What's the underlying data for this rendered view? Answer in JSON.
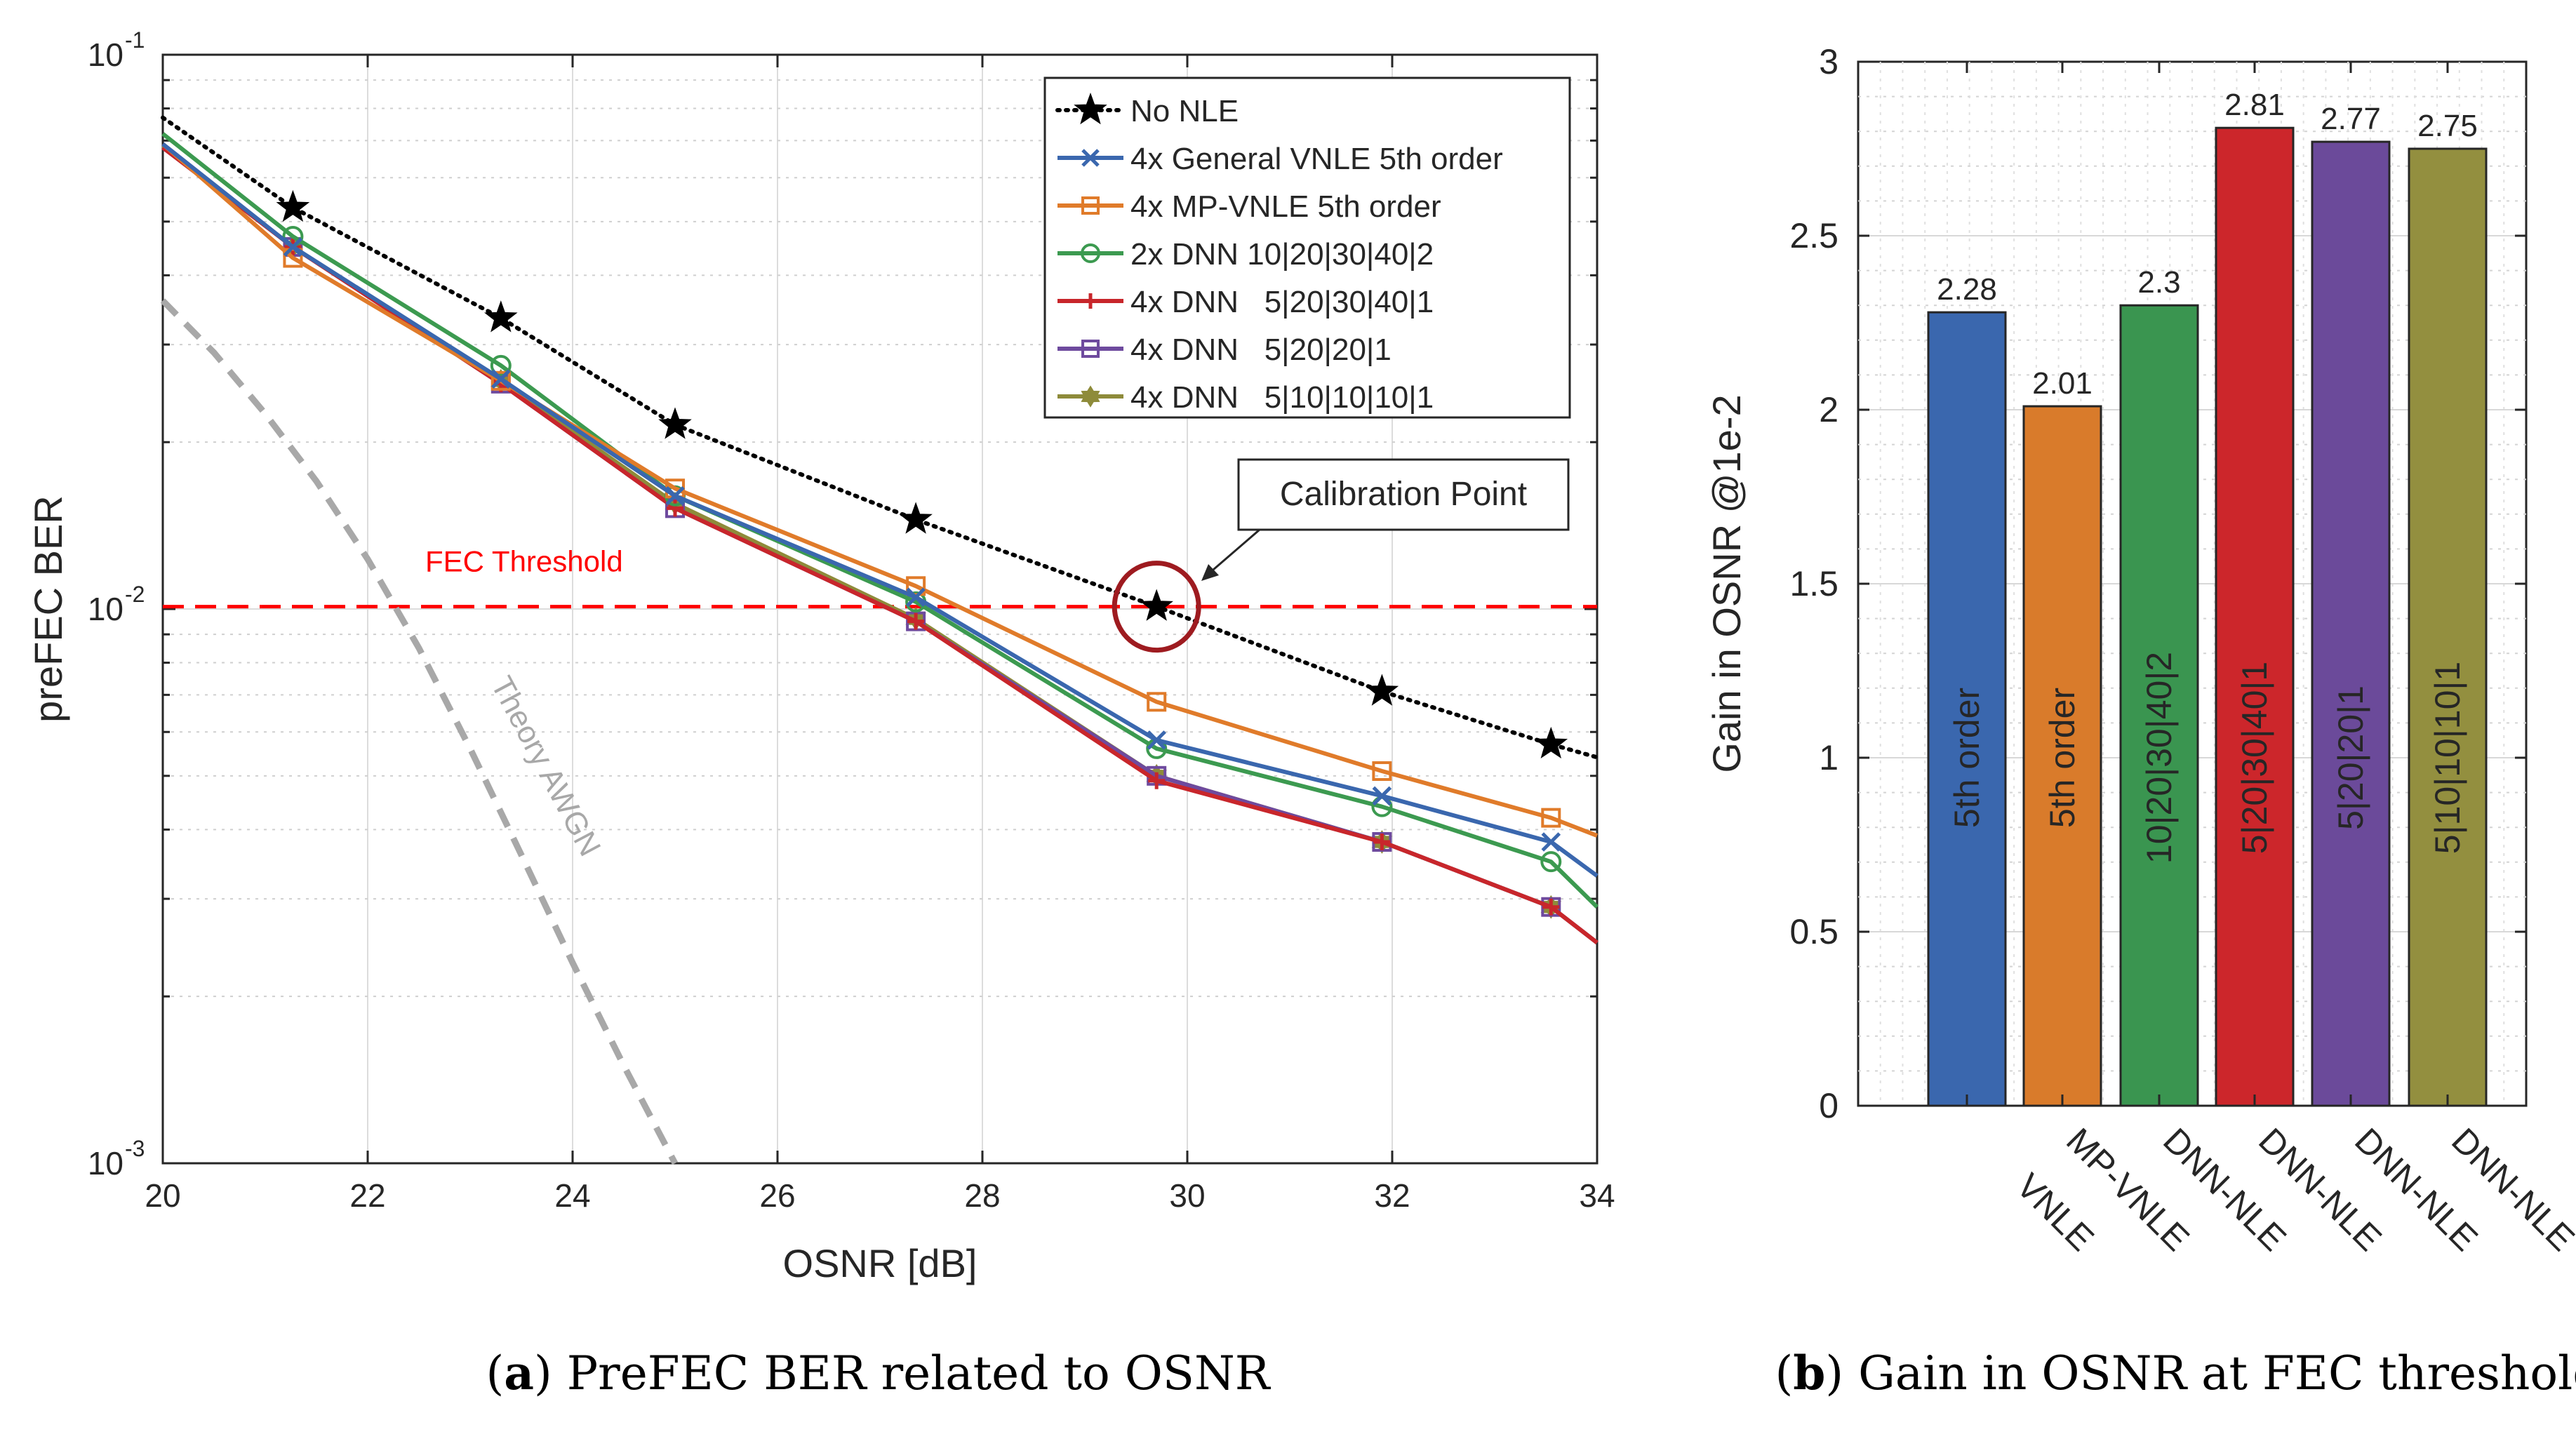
{
  "chart_data": [
    {
      "type": "line",
      "panel": "a",
      "caption_letter": "a",
      "caption_text": "PreFEC BER related to OSNR",
      "xlabel": "OSNR [dB]",
      "ylabel": "preFEC BER",
      "xlim": [
        20,
        34
      ],
      "ylim": [
        0.001,
        0.1
      ],
      "yscale": "log",
      "xticks": [
        20,
        22,
        24,
        26,
        28,
        30,
        32,
        34
      ],
      "yticks": [
        {
          "value": 0.1,
          "base": "10",
          "exp": "-1"
        },
        {
          "value": 0.01,
          "base": "10",
          "exp": "-2"
        },
        {
          "value": 0.001,
          "base": "10",
          "exp": "-3"
        }
      ],
      "grid": true,
      "legend_position": "top-right",
      "series": [
        {
          "name": "No NLE",
          "color": "#000000",
          "marker": "star",
          "style": "dotted",
          "x": [
            20,
            21.27,
            23.3,
            25.0,
            27.35,
            29.7,
            31.9,
            33.55,
            34
          ],
          "y": [
            0.077,
            0.053,
            0.0335,
            0.0215,
            0.0145,
            0.0101,
            0.0071,
            0.0057,
            0.0054
          ]
        },
        {
          "name": "4x General VNLE 5th order",
          "color": "#3A67AE",
          "marker": "x",
          "style": "solid",
          "x": [
            20,
            21.27,
            23.3,
            25.0,
            27.35,
            29.7,
            31.9,
            33.55,
            34
          ],
          "y": [
            0.069,
            0.045,
            0.026,
            0.016,
            0.0105,
            0.0058,
            0.0046,
            0.0038,
            0.0033
          ]
        },
        {
          "name": "4x MP-VNLE 5th order",
          "color": "#E07B2A",
          "marker": "square",
          "style": "solid",
          "x": [
            20,
            21.27,
            23.3,
            25.0,
            27.35,
            29.7,
            31.9,
            33.55,
            34
          ],
          "y": [
            0.069,
            0.043,
            0.0258,
            0.0165,
            0.011,
            0.0068,
            0.0051,
            0.0042,
            0.0039
          ]
        },
        {
          "name": "2x DNN 10|20|30|40|2",
          "color": "#3C9A50",
          "marker": "circle",
          "style": "solid",
          "x": [
            20,
            21.27,
            23.3,
            25.0,
            27.35,
            29.7,
            31.9,
            33.55,
            34
          ],
          "y": [
            0.072,
            0.047,
            0.0275,
            0.016,
            0.0103,
            0.0056,
            0.0044,
            0.0035,
            0.0029
          ]
        },
        {
          "name": "4x DNN   5|20|30|40|1",
          "color": "#C8262B",
          "marker": "plus",
          "style": "solid",
          "x": [
            20,
            21.27,
            23.3,
            25.0,
            27.35,
            29.7,
            31.9,
            33.55,
            34
          ],
          "y": [
            0.068,
            0.045,
            0.0255,
            0.0152,
            0.0095,
            0.0049,
            0.0038,
            0.0029,
            0.0025
          ]
        },
        {
          "name": "4x DNN   5|20|20|1",
          "color": "#6E4A9E",
          "marker": "square",
          "style": "solid",
          "x": [
            20,
            21.27,
            23.3,
            25.0,
            27.35,
            29.7,
            31.9,
            33.55,
            34
          ],
          "y": [
            0.068,
            0.045,
            0.0255,
            0.0152,
            0.0095,
            0.005,
            0.0038,
            0.0029,
            0.0025
          ]
        },
        {
          "name": "4x DNN   5|10|10|10|1",
          "color": "#8E8B3A",
          "marker": "hexagram",
          "style": "solid",
          "x": [
            20,
            21.27,
            23.3,
            25.0,
            27.35,
            29.7,
            31.9,
            33.55,
            34
          ],
          "y": [
            0.0685,
            0.045,
            0.0258,
            0.0155,
            0.0096,
            0.005,
            0.0038,
            0.0029,
            0.0025
          ]
        }
      ],
      "theory_curve": {
        "name": "Theory AWGN",
        "color": "#A8A8A8",
        "style": "dashed",
        "x": [
          20,
          20.5,
          21.0,
          21.5,
          22.0,
          22.5,
          23.0,
          23.5,
          24.0,
          24.5,
          25.0
        ],
        "y": [
          0.036,
          0.029,
          0.0225,
          0.017,
          0.0123,
          0.0085,
          0.0056,
          0.0036,
          0.0023,
          0.0015,
          0.001
        ]
      },
      "threshold": {
        "label": "FEC Threshold",
        "value": 0.0101,
        "color": "#FF0000"
      },
      "annotation": {
        "text": "Calibration Point",
        "x": 29.7,
        "y": 0.0101,
        "color": "#9E1B20"
      }
    },
    {
      "type": "bar",
      "panel": "b",
      "caption_letter": "b",
      "caption_text": "Gain in OSNR at FEC threshold",
      "ylabel": "Gain in OSNR @1e-2",
      "ylim": [
        0,
        3
      ],
      "yticks": [
        "0",
        "0.5",
        "1",
        "1.5",
        "2",
        "2.5",
        "3"
      ],
      "grid": true,
      "categories": [
        "VNLE",
        "MP-VNLE",
        "DNN-NLE",
        "DNN-NLE",
        "DNN-NLE",
        "DNN-NLE"
      ],
      "values": [
        2.28,
        2.01,
        2.3,
        2.81,
        2.77,
        2.75
      ],
      "value_labels": [
        "2.28",
        "2.01",
        "2.3",
        "2.81",
        "2.77",
        "2.75"
      ],
      "inner_labels": [
        "5th order",
        "5th order",
        "10|20|30|40|2",
        "5|20|30|40|1",
        "5|20|20|1",
        "5|10|10|10|1"
      ],
      "colors": [
        "#3A67AE",
        "#D97B2B",
        "#3A9550",
        "#CC262B",
        "#6B4A9A",
        "#938F3F"
      ]
    }
  ]
}
